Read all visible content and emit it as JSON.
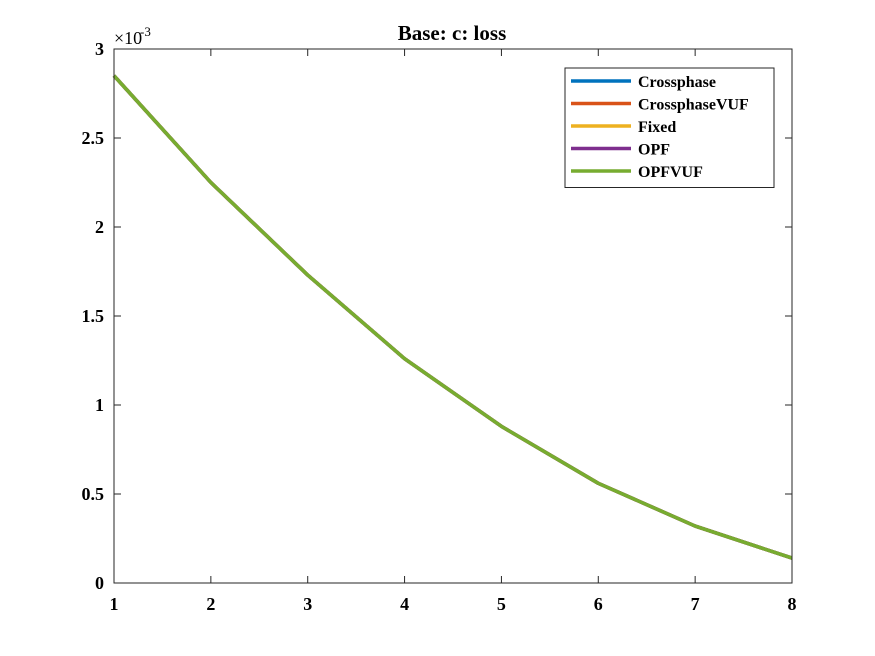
{
  "chart_data": {
    "type": "line",
    "title": "Base: c: loss",
    "xlabel": "",
    "ylabel": "",
    "x": [
      1,
      2,
      3,
      4,
      5,
      6,
      7,
      8
    ],
    "xlim": [
      1,
      8
    ],
    "ylim": [
      0,
      0.003
    ],
    "x_ticks": [
      "1",
      "2",
      "3",
      "4",
      "5",
      "6",
      "7",
      "8"
    ],
    "y_ticks": [
      "0",
      "0.5",
      "1",
      "1.5",
      "2",
      "2.5",
      "3"
    ],
    "y_tick_values": [
      0,
      0.0005,
      0.001,
      0.0015,
      0.002,
      0.0025,
      0.003
    ],
    "y_exponent_base": "×10",
    "y_exponent_power": "-3",
    "grid": false,
    "legend_position": "top-right",
    "series": [
      {
        "name": "Crossphase",
        "color": "#0072BD",
        "values": [
          0.00285,
          0.00225,
          0.00173,
          0.00126,
          0.00088,
          0.00056,
          0.00032,
          0.00014
        ]
      },
      {
        "name": "CrossphaseVUF",
        "color": "#D95319",
        "values": [
          0.00285,
          0.00225,
          0.00173,
          0.00126,
          0.00088,
          0.00056,
          0.00032,
          0.00014
        ]
      },
      {
        "name": "Fixed",
        "color": "#EDB120",
        "values": [
          0.00285,
          0.00225,
          0.00173,
          0.00126,
          0.00088,
          0.00056,
          0.00032,
          0.00014
        ]
      },
      {
        "name": "OPF",
        "color": "#7E2F8E",
        "values": [
          0.00285,
          0.00225,
          0.00173,
          0.00126,
          0.00088,
          0.00056,
          0.00032,
          0.00014
        ]
      },
      {
        "name": "OPFVUF",
        "color": "#77AC30",
        "values": [
          0.00285,
          0.00225,
          0.00173,
          0.00126,
          0.00088,
          0.00056,
          0.00032,
          0.00014
        ]
      }
    ]
  }
}
